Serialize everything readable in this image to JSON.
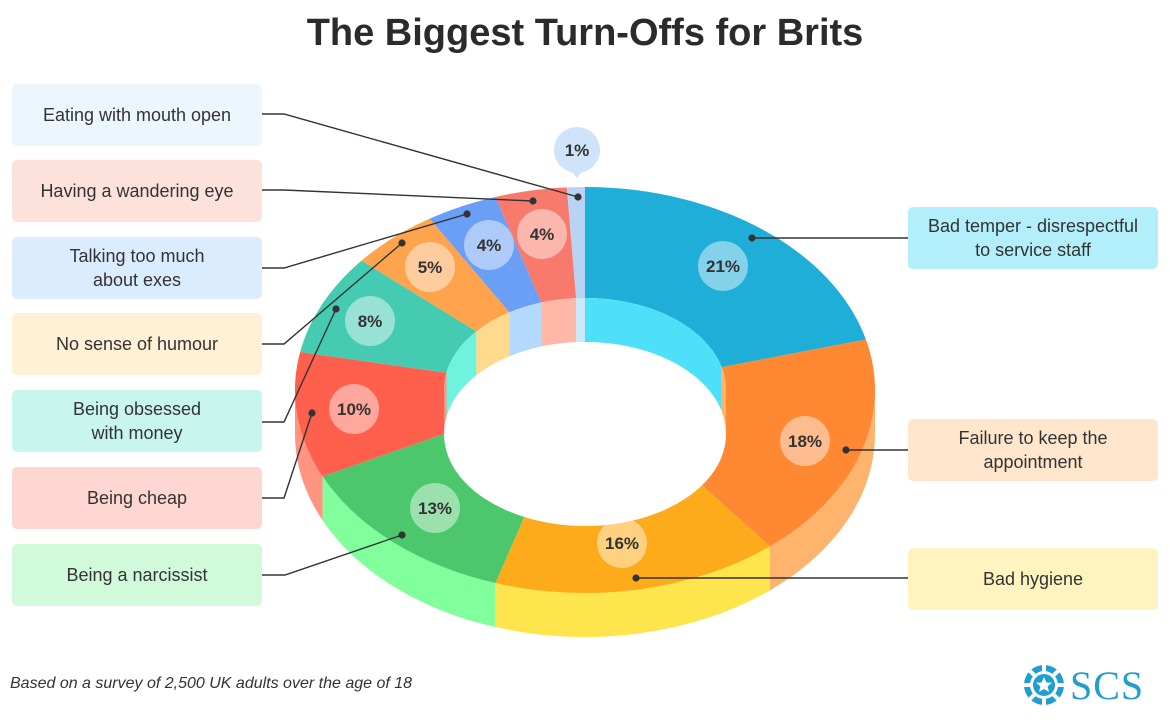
{
  "chart_data": {
    "type": "pie",
    "title": "The Biggest Turn-Offs for Brits",
    "slices": [
      {
        "label": "Bad temper - disrespectful to service staff",
        "value": 21,
        "value_label": "21%",
        "color": "#1eaed8",
        "side_color": "#4ee0f8",
        "box_color": "#b3eefb"
      },
      {
        "label": "Failure to keep the appointment",
        "value": 18,
        "value_label": "18%",
        "color": "#ff8833",
        "side_color": "#ffb46e",
        "box_color": "#ffe6cc"
      },
      {
        "label": "Bad hygiene",
        "value": 16,
        "value_label": "16%",
        "color": "#fdab1a",
        "side_color": "#ffe54d",
        "box_color": "#fff3bf"
      },
      {
        "label": "Being a narcissist",
        "value": 13,
        "value_label": "13%",
        "color": "#4cc76c",
        "side_color": "#80ff9c",
        "box_color": "#d1fadb"
      },
      {
        "label": "Being cheap",
        "value": 10,
        "value_label": "10%",
        "color": "#ff5f4d",
        "side_color": "#ff9480",
        "box_color": "#ffd6d1"
      },
      {
        "label": "Being obsessed with money",
        "value": 8,
        "value_label": "8%",
        "color": "#44cbb2",
        "side_color": "#6ff3de",
        "box_color": "#c8f5ee"
      },
      {
        "label": "No sense of humour",
        "value": 5,
        "value_label": "5%",
        "color": "#ffa34d",
        "side_color": "#ffd98c",
        "box_color": "#fff0d6"
      },
      {
        "label": "Talking too much about exes",
        "value": 4,
        "value_label": "4%",
        "color": "#6a9ff5",
        "side_color": "#b3d9ff",
        "box_color": "#dcecff"
      },
      {
        "label": "Having a wandering eye",
        "value": 4,
        "value_label": "4%",
        "color": "#f87a6c",
        "side_color": "#ffb8a8",
        "box_color": "#fde2dc"
      },
      {
        "label": "Eating with mouth open",
        "value": 1,
        "value_label": "1%",
        "color": "#b8d4f4",
        "side_color": "#c8e8fb",
        "box_color": "#ebf6fd"
      }
    ]
  },
  "callouts": [
    {
      "lines": [
        "Bad temper - disrespectful",
        "to service staff"
      ]
    },
    {
      "lines": [
        "Failure to keep the",
        "appointment"
      ]
    },
    {
      "lines": [
        "Bad hygiene"
      ]
    },
    {
      "lines": [
        "Being a narcissist"
      ]
    },
    {
      "lines": [
        "Being cheap"
      ]
    },
    {
      "lines": [
        "Being obsessed",
        "with money"
      ]
    },
    {
      "lines": [
        "No sense of humour"
      ]
    },
    {
      "lines": [
        "Talking too much",
        "about exes"
      ]
    },
    {
      "lines": [
        "Having a wandering eye"
      ]
    },
    {
      "lines": [
        "Eating with mouth open"
      ]
    }
  ],
  "footnote": "Based on a survey of 2,500 UK adults over the age of 18",
  "logo": {
    "text": "SCS",
    "icon": "casino-chip-icon",
    "color": "#1f9fd1"
  }
}
